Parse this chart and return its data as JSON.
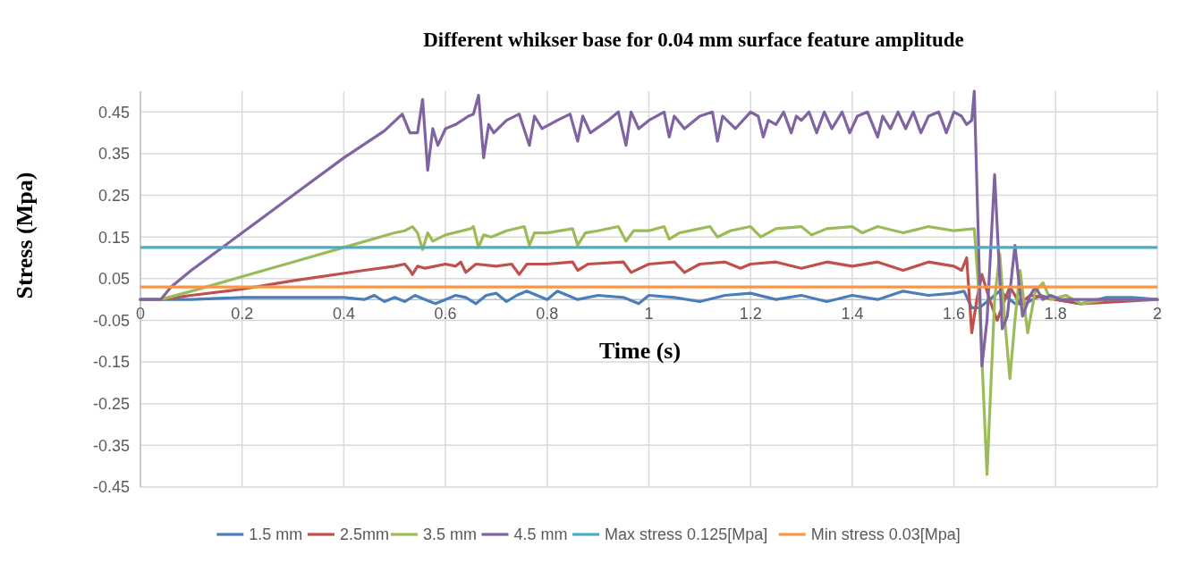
{
  "chart_data": {
    "type": "line",
    "title": "Different whikser base for 0.04 mm surface feature amplitude",
    "xlabel": "Time (s)",
    "ylabel": "Stress (Mpa)",
    "xlim": [
      0,
      2
    ],
    "xticks": [
      0,
      0.2,
      0.4,
      0.6,
      0.8,
      1,
      1.2,
      1.4,
      1.6,
      1.8,
      2
    ],
    "ylim": [
      -0.45,
      0.5
    ],
    "yticks": [
      -0.45,
      -0.35,
      -0.25,
      -0.15,
      -0.05,
      0.05,
      0.15,
      0.25,
      0.35,
      0.45
    ],
    "grid": true,
    "legend": "bottom",
    "marker": "none",
    "line_style": "solid",
    "series": [
      {
        "name": "1.5 mm",
        "color": "#4a7ebb",
        "x": [
          0,
          0.04,
          0.1,
          0.2,
          0.3,
          0.4,
          0.44,
          0.46,
          0.48,
          0.5,
          0.52,
          0.54,
          0.56,
          0.58,
          0.6,
          0.62,
          0.64,
          0.66,
          0.68,
          0.7,
          0.72,
          0.74,
          0.76,
          0.8,
          0.82,
          0.86,
          0.9,
          0.95,
          0.98,
          1.0,
          1.05,
          1.1,
          1.15,
          1.2,
          1.25,
          1.3,
          1.35,
          1.4,
          1.45,
          1.5,
          1.55,
          1.6,
          1.62,
          1.635,
          1.65,
          1.67,
          1.69,
          1.72,
          1.74,
          1.77,
          1.8,
          1.85,
          1.9,
          1.95,
          2
        ],
        "values": [
          0,
          0,
          0,
          0.005,
          0.005,
          0.005,
          0,
          0.01,
          -0.005,
          0.005,
          -0.005,
          0.01,
          0,
          -0.01,
          0,
          0.01,
          0.005,
          -0.01,
          0.01,
          0.015,
          -0.005,
          0.01,
          0.02,
          0,
          0.02,
          0,
          0.01,
          0.005,
          -0.01,
          0.01,
          0.005,
          -0.005,
          0.01,
          0.015,
          0,
          0.01,
          -0.005,
          0.01,
          0,
          0.02,
          0.01,
          0.015,
          0.02,
          -0.02,
          -0.02,
          0,
          0.02,
          -0.01,
          -0.01,
          0.01,
          0,
          -0.01,
          0.005,
          0.005,
          0
        ]
      },
      {
        "name": "2.5mm",
        "color": "#c0504d",
        "x": [
          0,
          0.04,
          0.1,
          0.2,
          0.3,
          0.44,
          0.5,
          0.52,
          0.53,
          0.535,
          0.545,
          0.56,
          0.6,
          0.62,
          0.63,
          0.64,
          0.66,
          0.7,
          0.73,
          0.745,
          0.76,
          0.8,
          0.85,
          0.86,
          0.88,
          0.95,
          0.965,
          1.0,
          1.05,
          1.07,
          1.1,
          1.15,
          1.18,
          1.2,
          1.25,
          1.3,
          1.35,
          1.4,
          1.45,
          1.5,
          1.55,
          1.6,
          1.615,
          1.625,
          1.635,
          1.645,
          1.655,
          1.67,
          1.685,
          1.7,
          1.71,
          1.73,
          1.75,
          1.8,
          1.85,
          2
        ],
        "values": [
          0,
          0,
          0.01,
          0.025,
          0.045,
          0.07,
          0.08,
          0.085,
          0.07,
          0.06,
          0.08,
          0.075,
          0.085,
          0.08,
          0.09,
          0.065,
          0.085,
          0.08,
          0.085,
          0.06,
          0.085,
          0.085,
          0.09,
          0.07,
          0.085,
          0.09,
          0.065,
          0.085,
          0.09,
          0.065,
          0.085,
          0.09,
          0.075,
          0.085,
          0.09,
          0.075,
          0.09,
          0.08,
          0.09,
          0.07,
          0.09,
          0.08,
          0.07,
          0.1,
          -0.08,
          0,
          0.06,
          0,
          -0.05,
          0,
          0.03,
          -0.01,
          0.01,
          0,
          -0.01,
          0
        ]
      },
      {
        "name": "3.5 mm",
        "color": "#9bbb59",
        "x": [
          0,
          0.04,
          0.1,
          0.2,
          0.3,
          0.4,
          0.5,
          0.52,
          0.535,
          0.545,
          0.555,
          0.565,
          0.575,
          0.6,
          0.65,
          0.655,
          0.665,
          0.675,
          0.69,
          0.72,
          0.755,
          0.765,
          0.775,
          0.8,
          0.85,
          0.86,
          0.875,
          0.9,
          0.94,
          0.955,
          0.97,
          1.0,
          1.03,
          1.04,
          1.06,
          1.1,
          1.12,
          1.135,
          1.16,
          1.2,
          1.22,
          1.25,
          1.3,
          1.32,
          1.35,
          1.4,
          1.42,
          1.45,
          1.5,
          1.55,
          1.6,
          1.64,
          1.65,
          1.665,
          1.68,
          1.69,
          1.7,
          1.71,
          1.72,
          1.73,
          1.745,
          1.76,
          1.775,
          1.79,
          1.82,
          1.85,
          1.9,
          2
        ],
        "values": [
          0,
          0,
          0.02,
          0.055,
          0.09,
          0.125,
          0.16,
          0.165,
          0.175,
          0.16,
          0.12,
          0.16,
          0.14,
          0.155,
          0.17,
          0.175,
          0.125,
          0.155,
          0.15,
          0.165,
          0.175,
          0.13,
          0.16,
          0.16,
          0.17,
          0.13,
          0.16,
          0.165,
          0.175,
          0.14,
          0.165,
          0.165,
          0.175,
          0.145,
          0.16,
          0.17,
          0.175,
          0.15,
          0.165,
          0.175,
          0.15,
          0.17,
          0.175,
          0.155,
          0.17,
          0.175,
          0.16,
          0.175,
          0.16,
          0.175,
          0.165,
          0.17,
          0,
          -0.42,
          0,
          0.11,
          -0.05,
          -0.19,
          -0.05,
          0.07,
          -0.08,
          0.02,
          0.04,
          0,
          0.01,
          -0.01,
          0,
          0
        ]
      },
      {
        "name": "4.5 mm",
        "color": "#8064a2",
        "x": [
          0,
          0.04,
          0.06,
          0.1,
          0.2,
          0.3,
          0.4,
          0.48,
          0.515,
          0.53,
          0.545,
          0.555,
          0.565,
          0.575,
          0.585,
          0.6,
          0.62,
          0.645,
          0.655,
          0.665,
          0.675,
          0.685,
          0.695,
          0.72,
          0.745,
          0.765,
          0.775,
          0.79,
          0.82,
          0.845,
          0.86,
          0.87,
          0.885,
          0.92,
          0.94,
          0.955,
          0.965,
          0.98,
          1.0,
          1.03,
          1.04,
          1.05,
          1.07,
          1.1,
          1.125,
          1.135,
          1.145,
          1.17,
          1.2,
          1.215,
          1.225,
          1.235,
          1.25,
          1.265,
          1.28,
          1.29,
          1.3,
          1.315,
          1.33,
          1.345,
          1.36,
          1.38,
          1.395,
          1.41,
          1.43,
          1.45,
          1.46,
          1.475,
          1.49,
          1.505,
          1.52,
          1.535,
          1.55,
          1.57,
          1.585,
          1.6,
          1.615,
          1.625,
          1.635,
          1.64,
          1.655,
          1.665,
          1.68,
          1.695,
          1.705,
          1.72,
          1.735,
          1.75,
          1.76,
          1.775,
          1.79,
          1.81,
          1.85,
          1.9,
          2
        ],
        "values": [
          0,
          0,
          0.03,
          0.07,
          0.16,
          0.25,
          0.34,
          0.405,
          0.445,
          0.4,
          0.4,
          0.48,
          0.31,
          0.41,
          0.37,
          0.41,
          0.42,
          0.44,
          0.445,
          0.49,
          0.34,
          0.42,
          0.4,
          0.43,
          0.445,
          0.37,
          0.44,
          0.41,
          0.43,
          0.445,
          0.38,
          0.44,
          0.4,
          0.43,
          0.45,
          0.37,
          0.45,
          0.41,
          0.43,
          0.45,
          0.39,
          0.44,
          0.41,
          0.44,
          0.45,
          0.38,
          0.44,
          0.41,
          0.45,
          0.44,
          0.39,
          0.43,
          0.42,
          0.45,
          0.4,
          0.44,
          0.43,
          0.45,
          0.4,
          0.45,
          0.41,
          0.45,
          0.4,
          0.44,
          0.45,
          0.39,
          0.44,
          0.41,
          0.45,
          0.41,
          0.45,
          0.4,
          0.44,
          0.45,
          0.4,
          0.45,
          0.44,
          0.42,
          0.43,
          0.5,
          -0.16,
          -0.05,
          0.3,
          -0.07,
          -0.04,
          0.13,
          -0.04,
          0.01,
          0.03,
          0,
          0.01,
          0,
          0,
          0,
          0
        ]
      }
    ],
    "ref_lines": [
      {
        "axis": "y",
        "value": 0.125,
        "label": "Max stress 0.125[Mpa]",
        "color": "#4bacc6"
      },
      {
        "axis": "y",
        "value": 0.03,
        "label": "Min stress 0.03[Mpa]",
        "color": "#f79646"
      }
    ]
  }
}
